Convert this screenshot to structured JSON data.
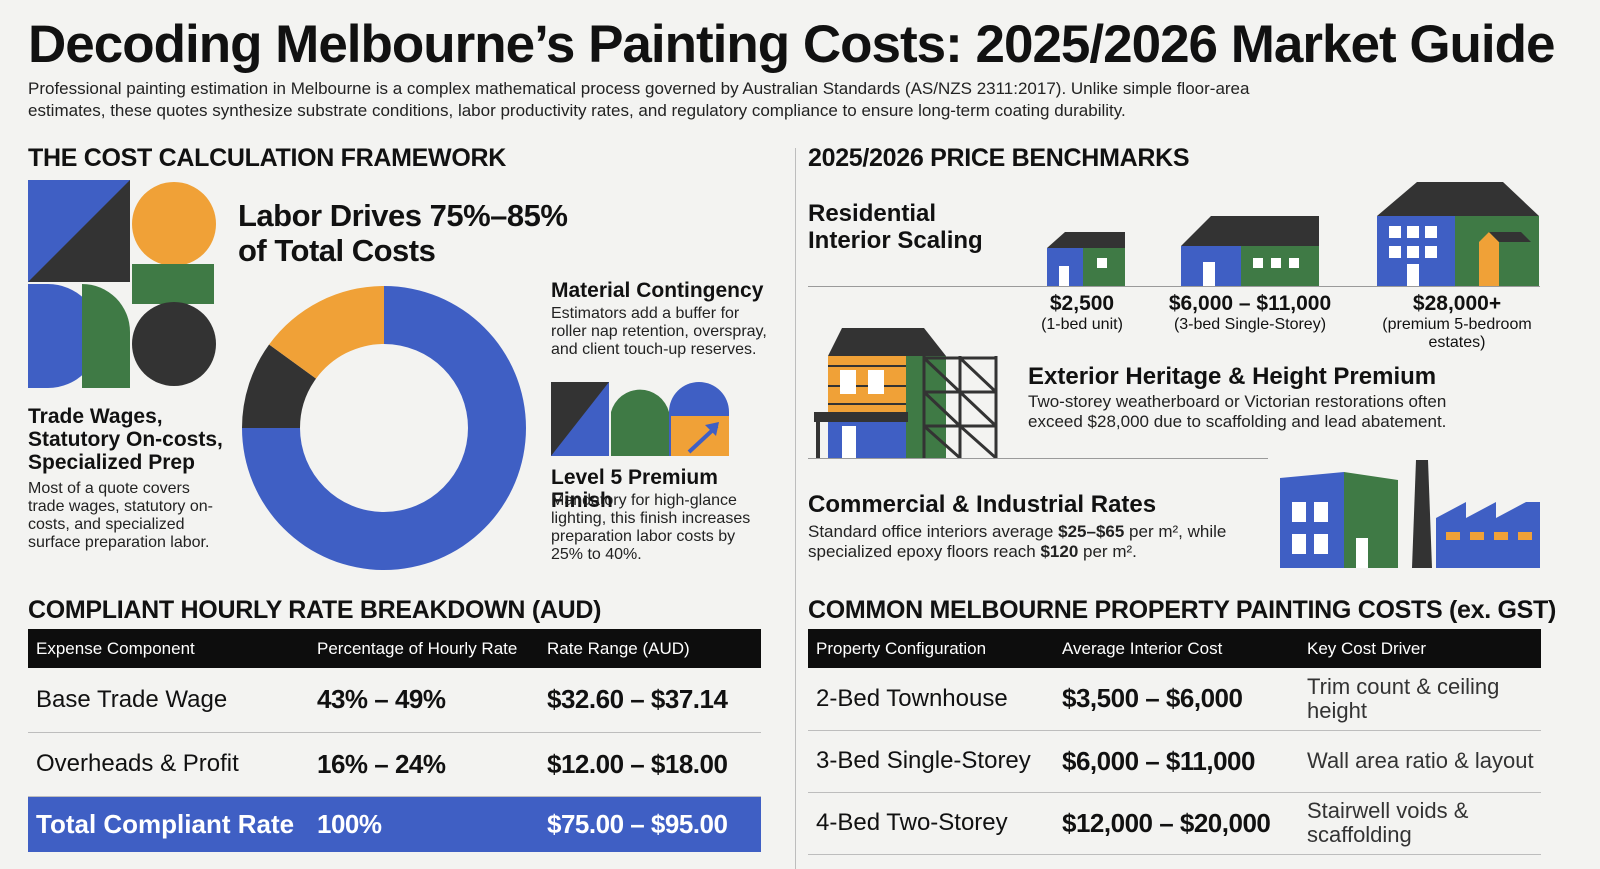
{
  "title": "Decoding Melbourne’s Painting Costs: 2025/2026 Market Guide",
  "intro": "Professional painting estimation in Melbourne is a complex mathematical process governed by Australian Standards (AS/NZS 2311:2017). Unlike simple floor-area estimates, these quotes synthesize substrate conditions, labor productivity rates, and regulatory compliance to ensure long-term coating durability.",
  "colors": {
    "blue": "#3f5fc4",
    "green": "#3f7a45",
    "orange": "#f0a137",
    "dark": "#333333"
  },
  "framework": {
    "heading": "THE COST CALCULATION FRAMEWORK",
    "labor_title": "Labor Drives 75%–85% of Total Costs",
    "trade": {
      "title": "Trade Wages, Statutory On-costs, Specialized Prep",
      "text": "Most of a quote covers trade wages, statutory on-costs, and specialized surface preparation labor."
    },
    "material": {
      "title": "Material Contingency",
      "text": "Estimators add a buffer for roller nap retention, overspray, and client touch-up reserves."
    },
    "level5": {
      "title": "Level 5 Premium Finish",
      "text": "Mandatory for high-glance lighting, this finish increases preparation labor costs by 25% to 40%."
    }
  },
  "chart_data": {
    "type": "pie",
    "note": "",
    "slices": [
      {
        "value": 75,
        "color": "#3f5fc4"
      },
      {
        "value": 10,
        "color": "#333333"
      },
      {
        "value": 15,
        "color": "#f0a137"
      }
    ]
  },
  "benchmarks": {
    "heading": "2025/2026 PRICE BENCHMARKS",
    "residential_title": "Residential Interior Scaling",
    "tiers": [
      {
        "price": "$2,500",
        "desc": "(1-bed unit)"
      },
      {
        "price": "$6,000 – $11,000",
        "desc": "(3-bed Single-Storey)"
      },
      {
        "price": "$28,000+",
        "desc": "(premium 5-bedroom estates)"
      }
    ],
    "exterior": {
      "title": "Exterior Heritage & Height Premium",
      "text": "Two-storey weatherboard or Victorian restorations often exceed $28,000 due to scaffolding and lead abatement."
    },
    "commercial": {
      "title": "Commercial & Industrial Rates",
      "text_a": "Standard office interiors average ",
      "rate_a": "$25–$65",
      "text_b": " per m², while specialized epoxy floors reach ",
      "rate_b": "$120",
      "text_c": " per m²."
    }
  },
  "hourly": {
    "heading": "COMPLIANT HOURLY RATE BREAKDOWN (AUD)",
    "headers": [
      "Expense Component",
      "Percentage of Hourly Rate",
      "Rate Range (AUD)"
    ],
    "rows": [
      [
        "Base Trade Wage",
        "43% – 49%",
        "$32.60 – $37.14"
      ],
      [
        "Overheads & Profit",
        "16% – 24%",
        "$12.00 – $18.00"
      ]
    ],
    "total": [
      "Total Compliant Rate",
      "100%",
      "$75.00 – $95.00"
    ]
  },
  "property": {
    "heading": "COMMON MELBOURNE PROPERTY PAINTING COSTS (ex. GST)",
    "headers": [
      "Property Configuration",
      "Average Interior Cost",
      "Key Cost Driver"
    ],
    "rows": [
      [
        "2-Bed Townhouse",
        "$3,500 – $6,000",
        "Trim count & ceiling height"
      ],
      [
        "3-Bed Single-Storey",
        "$6,000 – $11,000",
        "Wall area ratio & layout"
      ],
      [
        "4-Bed Two-Storey",
        "$12,000 – $20,000",
        "Stairwell voids & scaffolding"
      ]
    ]
  }
}
